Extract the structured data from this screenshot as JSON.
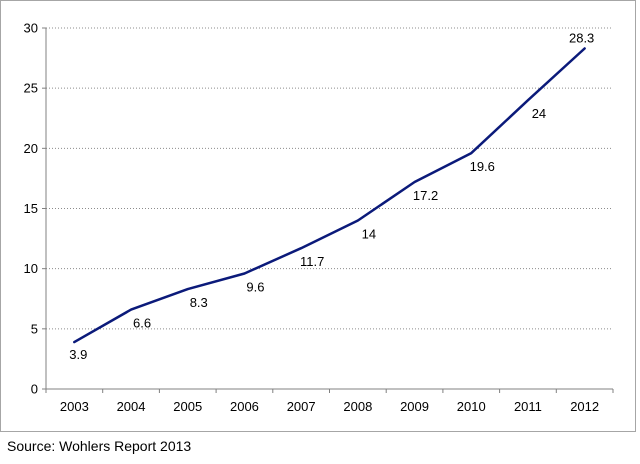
{
  "chart_data": {
    "type": "line",
    "x": [
      "2003",
      "2004",
      "2005",
      "2006",
      "2007",
      "2008",
      "2009",
      "2010",
      "2011",
      "2012"
    ],
    "series": [
      {
        "values": [
          3.9,
          6.6,
          8.3,
          9.6,
          11.7,
          14,
          17.2,
          19.6,
          24,
          28.3
        ],
        "color": "#0b1a7a"
      }
    ],
    "data_labels": [
      "3.9",
      "6.6",
      "8.3",
      "9.6",
      "11.7",
      "14",
      "17.2",
      "19.6",
      "24",
      "28.3"
    ],
    "yticks": [
      "0",
      "5",
      "10",
      "15",
      "20",
      "25",
      "30"
    ],
    "ylim": [
      0,
      30
    ],
    "grid": "horizontal-dotted",
    "legend": "none"
  },
  "source": "Source: Wohlers Report 2013"
}
